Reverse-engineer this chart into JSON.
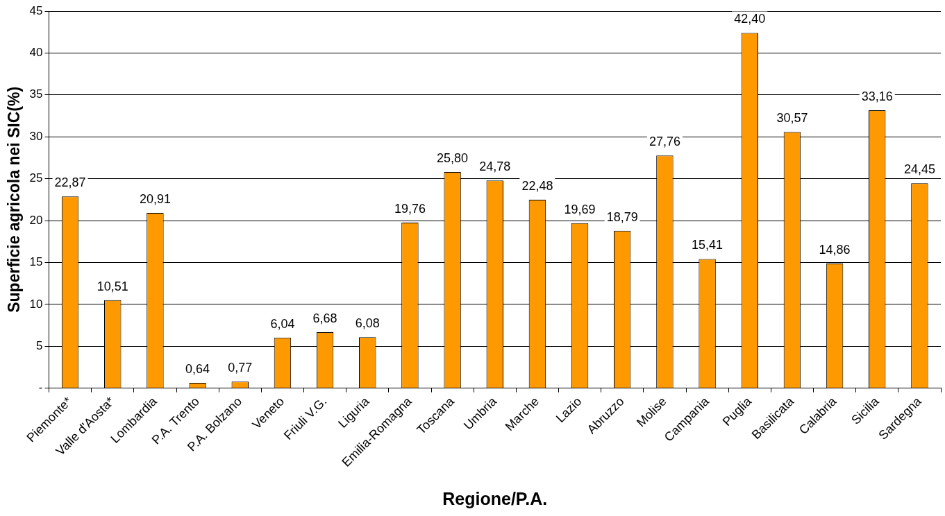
{
  "chart_data": {
    "type": "bar",
    "xlabel": "Regione/P.A.",
    "ylabel": "Superficie agricola nei SIC(%)",
    "categories": [
      "Piemonte*",
      "Valle d'Aosta*",
      "Lombardia",
      "P.A. Trento",
      "P.A. Bolzano",
      "Veneto",
      "Friuli V.G.",
      "Liguria",
      "Emilia-Romagna",
      "Toscana",
      "Umbria",
      "Marche",
      "Lazio",
      "Abruzzo",
      "Molise",
      "Campania",
      "Puglia",
      "Basilicata",
      "Calabria",
      "Sicilia",
      "Sardegna"
    ],
    "values": [
      22.87,
      10.51,
      20.91,
      0.64,
      0.77,
      6.04,
      6.68,
      6.08,
      19.76,
      25.8,
      24.78,
      22.48,
      19.69,
      18.79,
      27.76,
      15.41,
      42.4,
      30.57,
      14.86,
      33.16,
      24.45
    ],
    "value_labels": [
      "22,87",
      "10,51",
      "20,91",
      "0,64",
      "0,77",
      "6,04",
      "6,68",
      "6,08",
      "19,76",
      "25,80",
      "24,78",
      "22,48",
      "19,69",
      "18,79",
      "27,76",
      "15,41",
      "42,40",
      "30,57",
      "14,86",
      "33,16",
      "24,45"
    ],
    "color": "#ff9900",
    "ylim": [
      0,
      45
    ],
    "yticks": [
      {
        "value": 0,
        "label": "-"
      },
      5,
      10,
      15,
      20,
      25,
      30,
      35,
      40,
      45
    ],
    "grid": "y",
    "legend": false
  }
}
